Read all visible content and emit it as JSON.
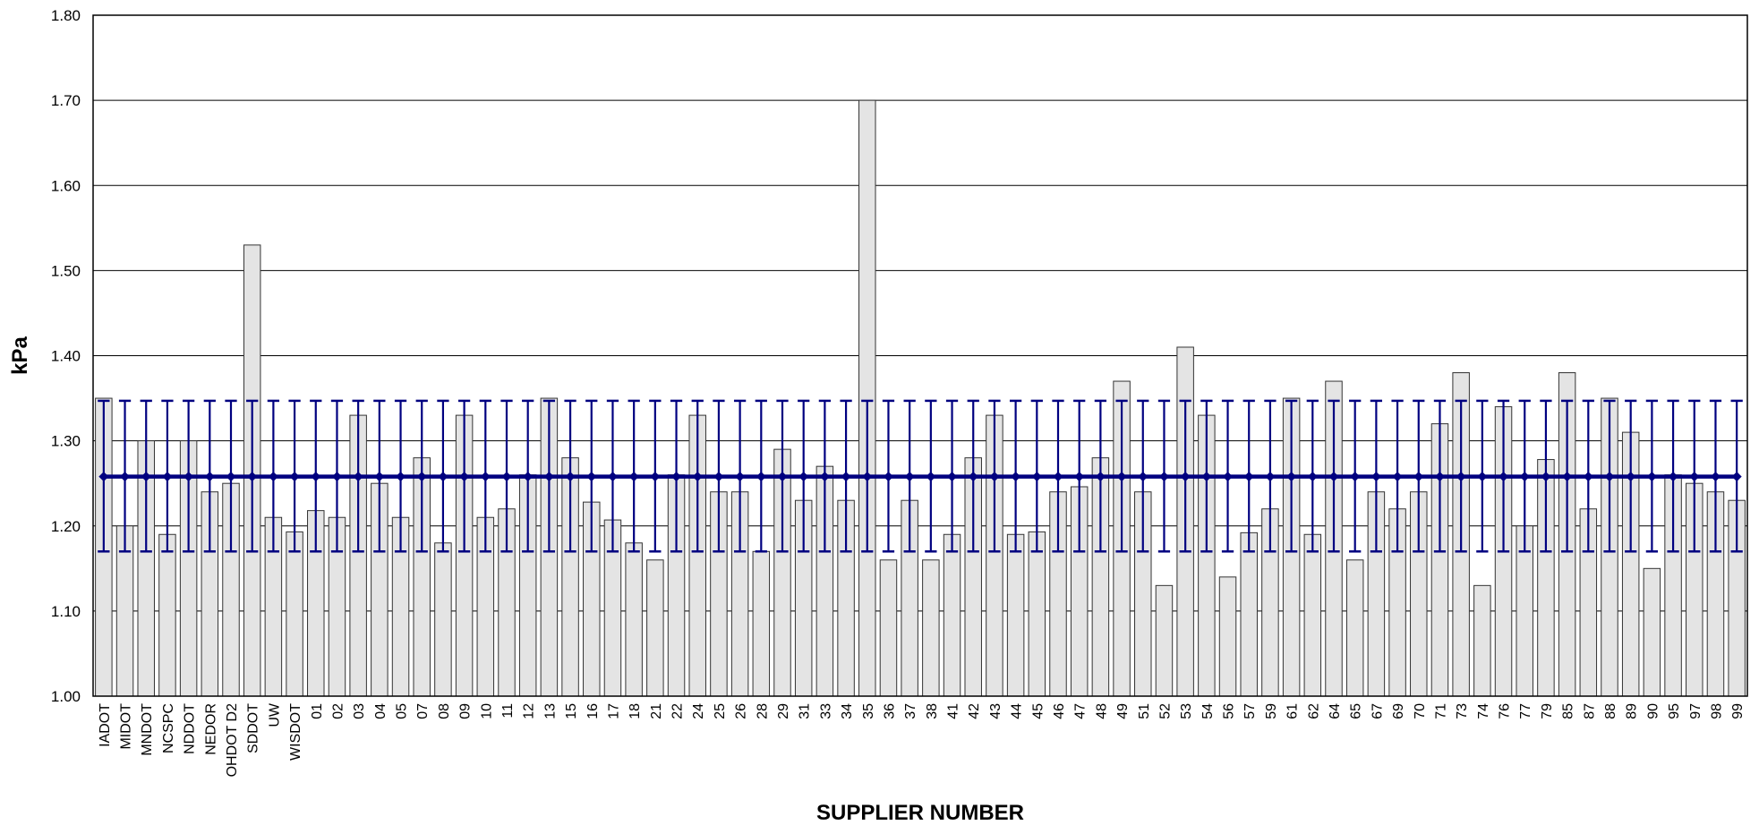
{
  "chart_data": {
    "type": "bar",
    "title": "",
    "xlabel": "SUPPLIER NUMBER",
    "ylabel": "kPa",
    "ylim": [
      1.0,
      1.8
    ],
    "yticks": [
      "1.00",
      "1.10",
      "1.20",
      "1.30",
      "1.40",
      "1.50",
      "1.60",
      "1.70",
      "1.80"
    ],
    "grid": true,
    "legend": "none",
    "categories": [
      "IADOT",
      "MIDOT",
      "MNDOT",
      "NCSPC",
      "NDDOT",
      "NEDOR",
      "OHDOT D2",
      "SDDOT",
      "UW",
      "WISDOT",
      "01",
      "02",
      "03",
      "04",
      "05",
      "07",
      "08",
      "09",
      "10",
      "11",
      "12",
      "13",
      "15",
      "16",
      "17",
      "18",
      "21",
      "22",
      "24",
      "25",
      "26",
      "28",
      "29",
      "31",
      "33",
      "34",
      "35",
      "36",
      "37",
      "38",
      "41",
      "42",
      "43",
      "44",
      "45",
      "46",
      "47",
      "48",
      "49",
      "51",
      "52",
      "53",
      "54",
      "56",
      "57",
      "59",
      "61",
      "62",
      "64",
      "65",
      "67",
      "69",
      "70",
      "71",
      "73",
      "74",
      "76",
      "77",
      "79",
      "85",
      "87",
      "88",
      "89",
      "90",
      "95",
      "97",
      "98",
      "99"
    ],
    "series": [
      {
        "type": "bar",
        "values": [
          1.35,
          1.2,
          1.3,
          1.19,
          1.3,
          1.24,
          1.25,
          1.53,
          1.21,
          1.193,
          1.218,
          1.21,
          1.33,
          1.25,
          1.21,
          1.28,
          1.18,
          1.33,
          1.21,
          1.22,
          1.26,
          1.35,
          1.28,
          1.228,
          1.207,
          1.18,
          1.16,
          1.26,
          1.33,
          1.24,
          1.24,
          1.17,
          1.29,
          1.23,
          1.27,
          1.23,
          1.7,
          1.16,
          1.23,
          1.16,
          1.19,
          1.28,
          1.33,
          1.19,
          1.193,
          1.24,
          1.246,
          1.28,
          1.37,
          1.24,
          1.13,
          1.41,
          1.33,
          1.14,
          1.192,
          1.22,
          1.35,
          1.19,
          1.37,
          1.16,
          1.24,
          1.22,
          1.24,
          1.32,
          1.38,
          1.13,
          1.34,
          1.2,
          1.278,
          1.38,
          1.22,
          1.35,
          1.31,
          1.15,
          1.26,
          1.25,
          1.24,
          1.23
        ]
      },
      {
        "type": "line",
        "mean": 1.258,
        "upper": 1.347,
        "lower": 1.17
      }
    ],
    "colors": {
      "bar_fill": "#e4e4e4",
      "bar_stroke": "#333333",
      "mean_line": "#000080",
      "grid": "#000000"
    }
  }
}
